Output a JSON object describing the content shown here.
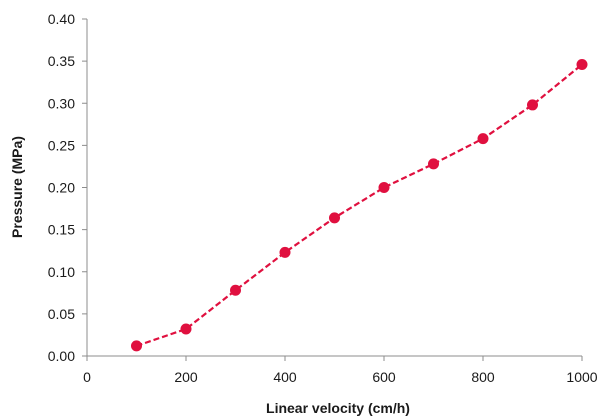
{
  "chart_data": {
    "type": "line",
    "title": "",
    "xlabel": "Linear velocity (cm/h)",
    "ylabel": "Pressure (MPa)",
    "xlim": [
      0,
      1000
    ],
    "ylim": [
      0,
      0.4
    ],
    "x_ticks": [
      "0",
      "200",
      "400",
      "600",
      "800",
      "1000"
    ],
    "y_ticks": [
      "0.00",
      "0.05",
      "0.10",
      "0.15",
      "0.20",
      "0.25",
      "0.30",
      "0.35",
      "0.40"
    ],
    "grid": false,
    "legend": "none",
    "series": [
      {
        "color": "#e0103f",
        "line_style": "dashed",
        "marker": "circle",
        "points": [
          {
            "x": 100,
            "y": 0.012
          },
          {
            "x": 200,
            "y": 0.032
          },
          {
            "x": 300,
            "y": 0.078
          },
          {
            "x": 400,
            "y": 0.123
          },
          {
            "x": 500,
            "y": 0.164
          },
          {
            "x": 600,
            "y": 0.2
          },
          {
            "x": 700,
            "y": 0.228
          },
          {
            "x": 800,
            "y": 0.258
          },
          {
            "x": 900,
            "y": 0.298
          },
          {
            "x": 1000,
            "y": 0.346
          }
        ]
      }
    ]
  }
}
